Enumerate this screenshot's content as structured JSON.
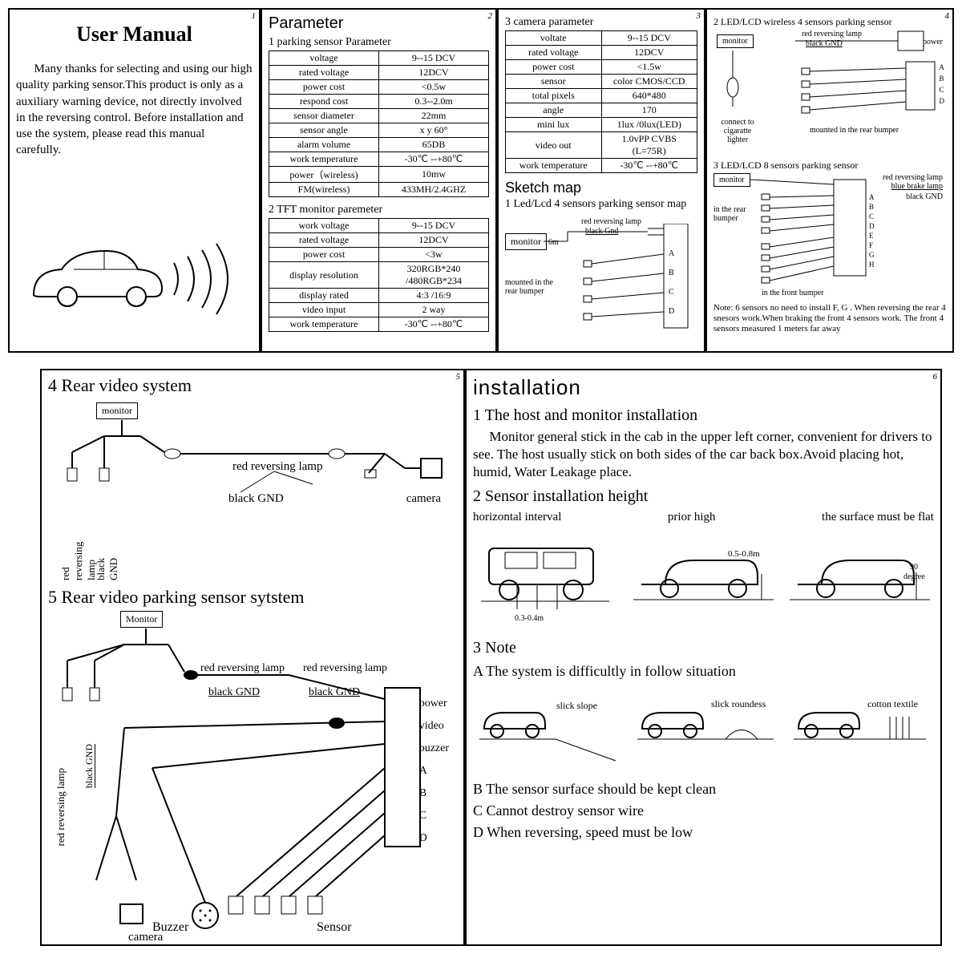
{
  "panels": {
    "1": "1",
    "2": "2",
    "3": "3",
    "4": "4",
    "5": "5",
    "6": "6"
  },
  "p1": {
    "title": "User  Manual",
    "body": "Many  thanks for selecting and  using our high quality parking sensor.This product is only as a auxiliary warning device, not directly involved in the reversing control.    Before installation and use the system, please read this manual carefully."
  },
  "p2": {
    "title": "Parameter",
    "s1": "1  parking sensor Parameter",
    "t1": {
      "rows": [
        [
          "voltage",
          "9--15 DCV"
        ],
        [
          "rated voltage",
          "12DCV"
        ],
        [
          "power cost",
          "<0.5w"
        ],
        [
          "respond cost",
          "0.3--2.0m"
        ],
        [
          "sensor diameter",
          "22mm"
        ],
        [
          "sensor angle",
          "x  y  60°"
        ],
        [
          "alarm volume",
          "65DB"
        ],
        [
          "work temperature",
          "-30℃ --+80℃"
        ],
        [
          "power（wireless)",
          "10mw"
        ],
        [
          "FM(wireless)",
          "433MH/2.4GHZ"
        ]
      ]
    },
    "s2": "2    TFT monitor paremeter",
    "t2": {
      "rows": [
        [
          "work  voltage",
          "9--15 DCV"
        ],
        [
          "rated   voltage",
          "12DCV"
        ],
        [
          "power   cost",
          "<3w"
        ],
        [
          "display resolution",
          "320RGB*240  /480RGB*234"
        ],
        [
          "display rated",
          "4:3  /16:9"
        ],
        [
          "video  input",
          "2  way"
        ],
        [
          "work  temperature",
          "-30℃ --+80℃"
        ]
      ]
    }
  },
  "p3": {
    "s1": "3   camera parameter",
    "t1": {
      "rows": [
        [
          "voltate",
          "9--15 DCV"
        ],
        [
          "rated voltage",
          "12DCV"
        ],
        [
          "power  cost",
          "<1.5w"
        ],
        [
          "sensor",
          "color  CMOS/CCD"
        ],
        [
          "total pixels",
          "640*480"
        ],
        [
          "angle",
          "170"
        ],
        [
          "mini lux",
          "1lux /0lux(LED)"
        ],
        [
          "video out",
          "1.0vPP CVBS  (L=75R)"
        ],
        [
          "work  temperature",
          "-30℃ --+80℃"
        ]
      ]
    },
    "sketch_title": "Sketch  map",
    "sketch_sub": "1  Led/Lcd 4 sensors parking sensor  map",
    "labels": {
      "monitor": "monitor",
      "6m": "6m",
      "red": "red  reversing lamp",
      "black": "black  Gnd",
      "mounted": "mounted  in  the rear bumper",
      "A": "A",
      "B": "B",
      "C": "C",
      "D": "D"
    }
  },
  "p4": {
    "s1": "2  LED/LCD wireless 4 sensors parking sensor",
    "s2": "3  LED/LCD 8 sensors parking sensor",
    "labels": {
      "monitor": "monitor",
      "power": "power",
      "red": "red  reversing lamp",
      "black": "black  GND",
      "blue": "blue  brake lamp",
      "connect": "connect  to cigaratte lighter",
      "mounted_rear": "mounted  in  the rear bumper",
      "in_rear": "in  the rear bumper",
      "in_front": "in  the front bumper",
      "ports4": [
        "A",
        "B",
        "C",
        "D"
      ],
      "ports8": [
        "A",
        "B",
        "C",
        "D",
        "E",
        "F",
        "G",
        "H"
      ]
    },
    "note": "Note:   6 sensors no need to install F, G . When reversing  the  rear 4 snesors work.When braking  the front 4 sensors work. The front 4 sensors measured 1 meters far away"
  },
  "p5": {
    "h1": "4  Rear video  system",
    "h2": "5  Rear video parking  sensor sytstem",
    "labels": {
      "monitor": "monitor",
      "Monitor": "Monitor",
      "red": "red  reversing lamp",
      "black": "black  GND",
      "blackGND": "black GND",
      "camera": "camera",
      "Buzzer": "Buzzer",
      "Sensor": "Sensor",
      "power": "power",
      "video": "video",
      "buzzer": "buzzer",
      "A": "A",
      "B": "B",
      "C": "C",
      "D": "D",
      "red_v": "red reversing lamp",
      "black_v": "black  GND"
    }
  },
  "p6": {
    "title": "installation",
    "s1": "1  The  host and monitor  installation",
    "p1": "Monitor general stick in the cab in the upper left corner, convenient for drivers to see. The host usually stick on both sides of  the car back box.Avoid placing hot, humid, Water Leakage place.",
    "s2": "2  Sensor installation      height",
    "lab_h": "horizontal interval",
    "lab_p": "prior high",
    "lab_f": "the surface must be flat",
    "dims": {
      "hw": "0.3-0.4m",
      "ph": "0.5-0.8m",
      "deg": "90 degree"
    },
    "s3": "3  Note",
    "A": "A  The  system  is  difficultly  in follow  situation",
    "sit": {
      "a": "slick slope",
      "b": "slick  roundess",
      "c": "cotton textile"
    },
    "B": "B   The sensor  surface should be kept clean",
    "C": "C   Cannot destroy sensor wire",
    "D": "D   When reversing, speed must be low"
  }
}
